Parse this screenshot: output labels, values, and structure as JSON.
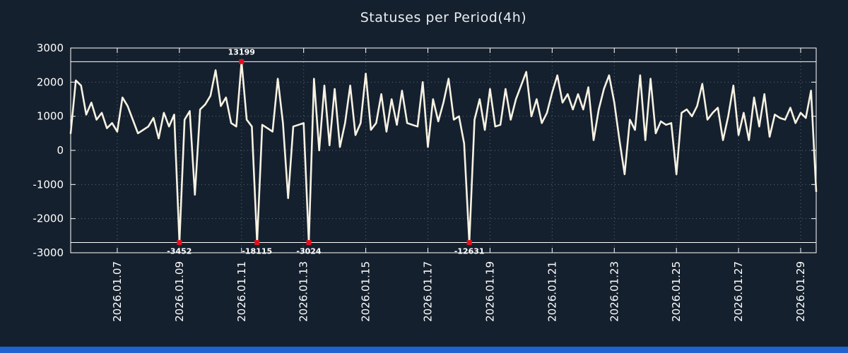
{
  "title": "Statuses per Period(4h)",
  "colors": {
    "background": "#15202e",
    "plot_border": "#ffffff",
    "grid": "#9aa5b1",
    "line": "#f7f2e2",
    "marker": "#e30f1e",
    "text": "#ffffff",
    "annotation_text": "#ffffff",
    "footer_bar": "#1e63cf"
  },
  "chart_data": {
    "type": "line",
    "title": "Statuses per Period(4h)",
    "x_start": "2026.01.05 12:00",
    "x_step_hours": 4,
    "ylim": [
      -3000,
      3000
    ],
    "y_ticks": [
      3000,
      2000,
      1000,
      0,
      -1000,
      -2000,
      -3000
    ],
    "clip_high": 2600,
    "clip_low": -2700,
    "x_ticks": [
      {
        "label": "2026.01.07",
        "index": 9
      },
      {
        "label": "2026.01.09",
        "index": 21
      },
      {
        "label": "2026.01.11",
        "index": 33
      },
      {
        "label": "2026.01.13",
        "index": 45
      },
      {
        "label": "2026.01.15",
        "index": 57
      },
      {
        "label": "2026.01.17",
        "index": 69
      },
      {
        "label": "2026.01.19",
        "index": 81
      },
      {
        "label": "2026.01.21",
        "index": 93
      },
      {
        "label": "2026.01.23",
        "index": 105
      },
      {
        "label": "2026.01.25",
        "index": 117
      },
      {
        "label": "2026.01.27",
        "index": 129
      },
      {
        "label": "2026.01.29",
        "index": 141
      }
    ],
    "values": [
      500,
      2050,
      1900,
      1050,
      1400,
      900,
      1100,
      650,
      800,
      550,
      1550,
      1300,
      900,
      500,
      600,
      700,
      950,
      350,
      1100,
      700,
      1050,
      -3452,
      900,
      1150,
      -1300,
      1200,
      1350,
      1600,
      2350,
      1300,
      1550,
      800,
      700,
      13199,
      900,
      700,
      -18115,
      750,
      650,
      550,
      2100,
      800,
      -1400,
      700,
      750,
      800,
      -3024,
      2100,
      0,
      1900,
      150,
      1800,
      100,
      800,
      1900,
      450,
      800,
      2250,
      600,
      800,
      1650,
      550,
      1500,
      750,
      1750,
      800,
      750,
      700,
      2000,
      100,
      1500,
      850,
      1400,
      2100,
      900,
      1000,
      200,
      -12631,
      900,
      1500,
      600,
      1800,
      700,
      750,
      1800,
      900,
      1500,
      1900,
      2300,
      1000,
      1500,
      800,
      1100,
      1700,
      2200,
      1400,
      1650,
      1200,
      1650,
      1200,
      1850,
      300,
      1200,
      1800,
      2200,
      1400,
      300,
      -700,
      900,
      600,
      2200,
      300,
      2100,
      500,
      850,
      750,
      800,
      -700,
      1100,
      1200,
      1000,
      1300,
      1950,
      900,
      1100,
      1250,
      300,
      1000,
      1900,
      450,
      1100,
      300,
      1550,
      700,
      1650,
      400,
      1050,
      950,
      900,
      1250,
      800,
      1100,
      950,
      1750,
      -1200
    ],
    "annotations": [
      {
        "label": "-3452",
        "index": 21,
        "position": "bottom"
      },
      {
        "label": "13199",
        "index": 33,
        "position": "top"
      },
      {
        "label": "-18115",
        "index": 36,
        "position": "bottom"
      },
      {
        "label": "-3024",
        "index": 46,
        "position": "bottom"
      },
      {
        "label": "-12631",
        "index": 77,
        "position": "bottom"
      }
    ],
    "legend": null,
    "grid": true
  }
}
